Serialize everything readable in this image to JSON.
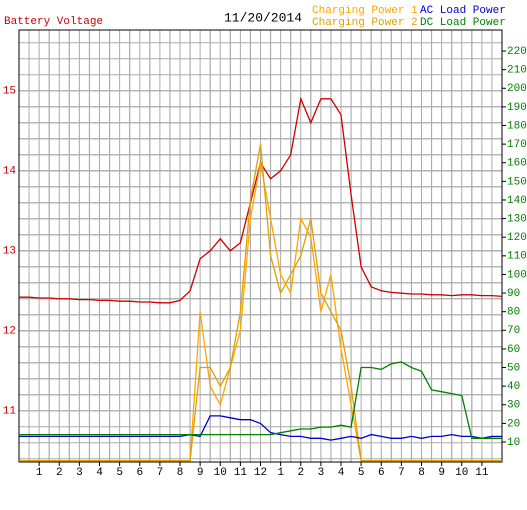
{
  "chart_data": {
    "type": "line",
    "title": "11/20/2014",
    "x": [
      0,
      0.5,
      1,
      1.5,
      2,
      2.5,
      3,
      3.5,
      4,
      4.5,
      5,
      5.5,
      6,
      6.5,
      7,
      7.5,
      8,
      8.5,
      9,
      9.5,
      10,
      10.5,
      11,
      11.5,
      12,
      12.5,
      13,
      13.5,
      14,
      14.5,
      15,
      15.5,
      16,
      16.5,
      17,
      17.5,
      18,
      18.5,
      19,
      19.5,
      20,
      20.5,
      21,
      21.5,
      22,
      22.5,
      23,
      23.5,
      24
    ],
    "xlim": [
      0,
      24
    ],
    "xticks": [
      {
        "value": 1,
        "label": "1"
      },
      {
        "value": 2,
        "label": "2"
      },
      {
        "value": 3,
        "label": "3"
      },
      {
        "value": 4,
        "label": "4"
      },
      {
        "value": 5,
        "label": "5"
      },
      {
        "value": 6,
        "label": "6"
      },
      {
        "value": 7,
        "label": "7"
      },
      {
        "value": 8,
        "label": "8"
      },
      {
        "value": 9,
        "label": "9"
      },
      {
        "value": 10,
        "label": "10"
      },
      {
        "value": 11,
        "label": "11"
      },
      {
        "value": 12,
        "label": "12"
      },
      {
        "value": 13,
        "label": "1"
      },
      {
        "value": 14,
        "label": "2"
      },
      {
        "value": 15,
        "label": "3"
      },
      {
        "value": 16,
        "label": "4"
      },
      {
        "value": 17,
        "label": "5"
      },
      {
        "value": 18,
        "label": "6"
      },
      {
        "value": 19,
        "label": "7"
      },
      {
        "value": 20,
        "label": "8"
      },
      {
        "value": 21,
        "label": "9"
      },
      {
        "value": 22,
        "label": "10"
      },
      {
        "value": 23,
        "label": "11"
      }
    ],
    "ylim": [
      10.36,
      15.76
    ],
    "yticks": [
      11,
      12,
      13,
      14,
      15
    ],
    "ycolor": "#cc0000",
    "y2lim": [
      -0.74,
      231.3
    ],
    "y2ticks": [
      10,
      20,
      30,
      40,
      50,
      60,
      70,
      80,
      90,
      100,
      110,
      120,
      130,
      140,
      150,
      160,
      170,
      180,
      190,
      200,
      210,
      220
    ],
    "y2color": "#008000",
    "grid": true,
    "series": [
      {
        "name": "Battery Voltage",
        "color": "#cc0000",
        "axis": "y",
        "values": [
          12.42,
          12.42,
          12.41,
          12.41,
          12.4,
          12.4,
          12.39,
          12.39,
          12.38,
          12.38,
          12.37,
          12.37,
          12.36,
          12.36,
          12.35,
          12.35,
          12.38,
          12.5,
          12.9,
          13.0,
          13.15,
          13.0,
          13.1,
          13.6,
          14.1,
          13.9,
          14.0,
          14.2,
          14.9,
          14.6,
          14.9,
          14.9,
          14.7,
          13.7,
          12.8,
          12.55,
          12.5,
          12.48,
          12.47,
          12.46,
          12.46,
          12.45,
          12.45,
          12.44,
          12.45,
          12.45,
          12.44,
          12.44,
          12.43
        ]
      },
      {
        "name": "Charging Power 1",
        "color": "#ffa500",
        "axis": "y2",
        "values": [
          0,
          0,
          0,
          0,
          0,
          0,
          0,
          0,
          0,
          0,
          0,
          0,
          0,
          0,
          0,
          0,
          0,
          0,
          80,
          40,
          30,
          50,
          70,
          130,
          160,
          130,
          100,
          90,
          130,
          120,
          80,
          100,
          60,
          30,
          0,
          0,
          0,
          0,
          0,
          0,
          0,
          0,
          0,
          0,
          0,
          0,
          0,
          0,
          0
        ]
      },
      {
        "name": "Charging Power 2",
        "color": "#e0a000",
        "axis": "y2",
        "values": [
          0,
          0,
          0,
          0,
          0,
          0,
          0,
          0,
          0,
          0,
          0,
          0,
          0,
          0,
          0,
          0,
          0,
          0,
          50,
          50,
          40,
          50,
          80,
          140,
          170,
          110,
          90,
          100,
          110,
          130,
          90,
          80,
          70,
          40,
          0,
          0,
          0,
          0,
          0,
          0,
          0,
          0,
          0,
          0,
          0,
          0,
          0,
          0,
          0
        ]
      },
      {
        "name": "AC Load Power",
        "color": "#0000cc",
        "axis": "y2",
        "values": [
          13,
          13,
          13,
          13,
          13,
          13,
          13,
          13,
          13,
          13,
          13,
          13,
          13,
          13,
          13,
          13,
          13,
          14,
          13,
          24,
          24,
          23,
          22,
          22,
          20,
          15,
          14,
          13,
          13,
          12,
          12,
          11,
          12,
          13,
          12,
          14,
          13,
          12,
          12,
          13,
          12,
          13,
          13,
          14,
          13,
          13,
          12,
          13,
          13
        ]
      },
      {
        "name": "DC Load Power",
        "color": "#008000",
        "axis": "y2",
        "values": [
          14,
          14,
          14,
          14,
          14,
          14,
          14,
          14,
          14,
          14,
          14,
          14,
          14,
          14,
          14,
          14,
          14,
          14,
          14,
          14,
          14,
          14,
          14,
          14,
          14,
          14,
          15,
          16,
          17,
          17,
          18,
          18,
          19,
          18,
          50,
          50,
          49,
          52,
          53,
          50,
          48,
          38,
          37,
          36,
          35,
          12,
          12,
          12,
          12
        ]
      }
    ]
  }
}
